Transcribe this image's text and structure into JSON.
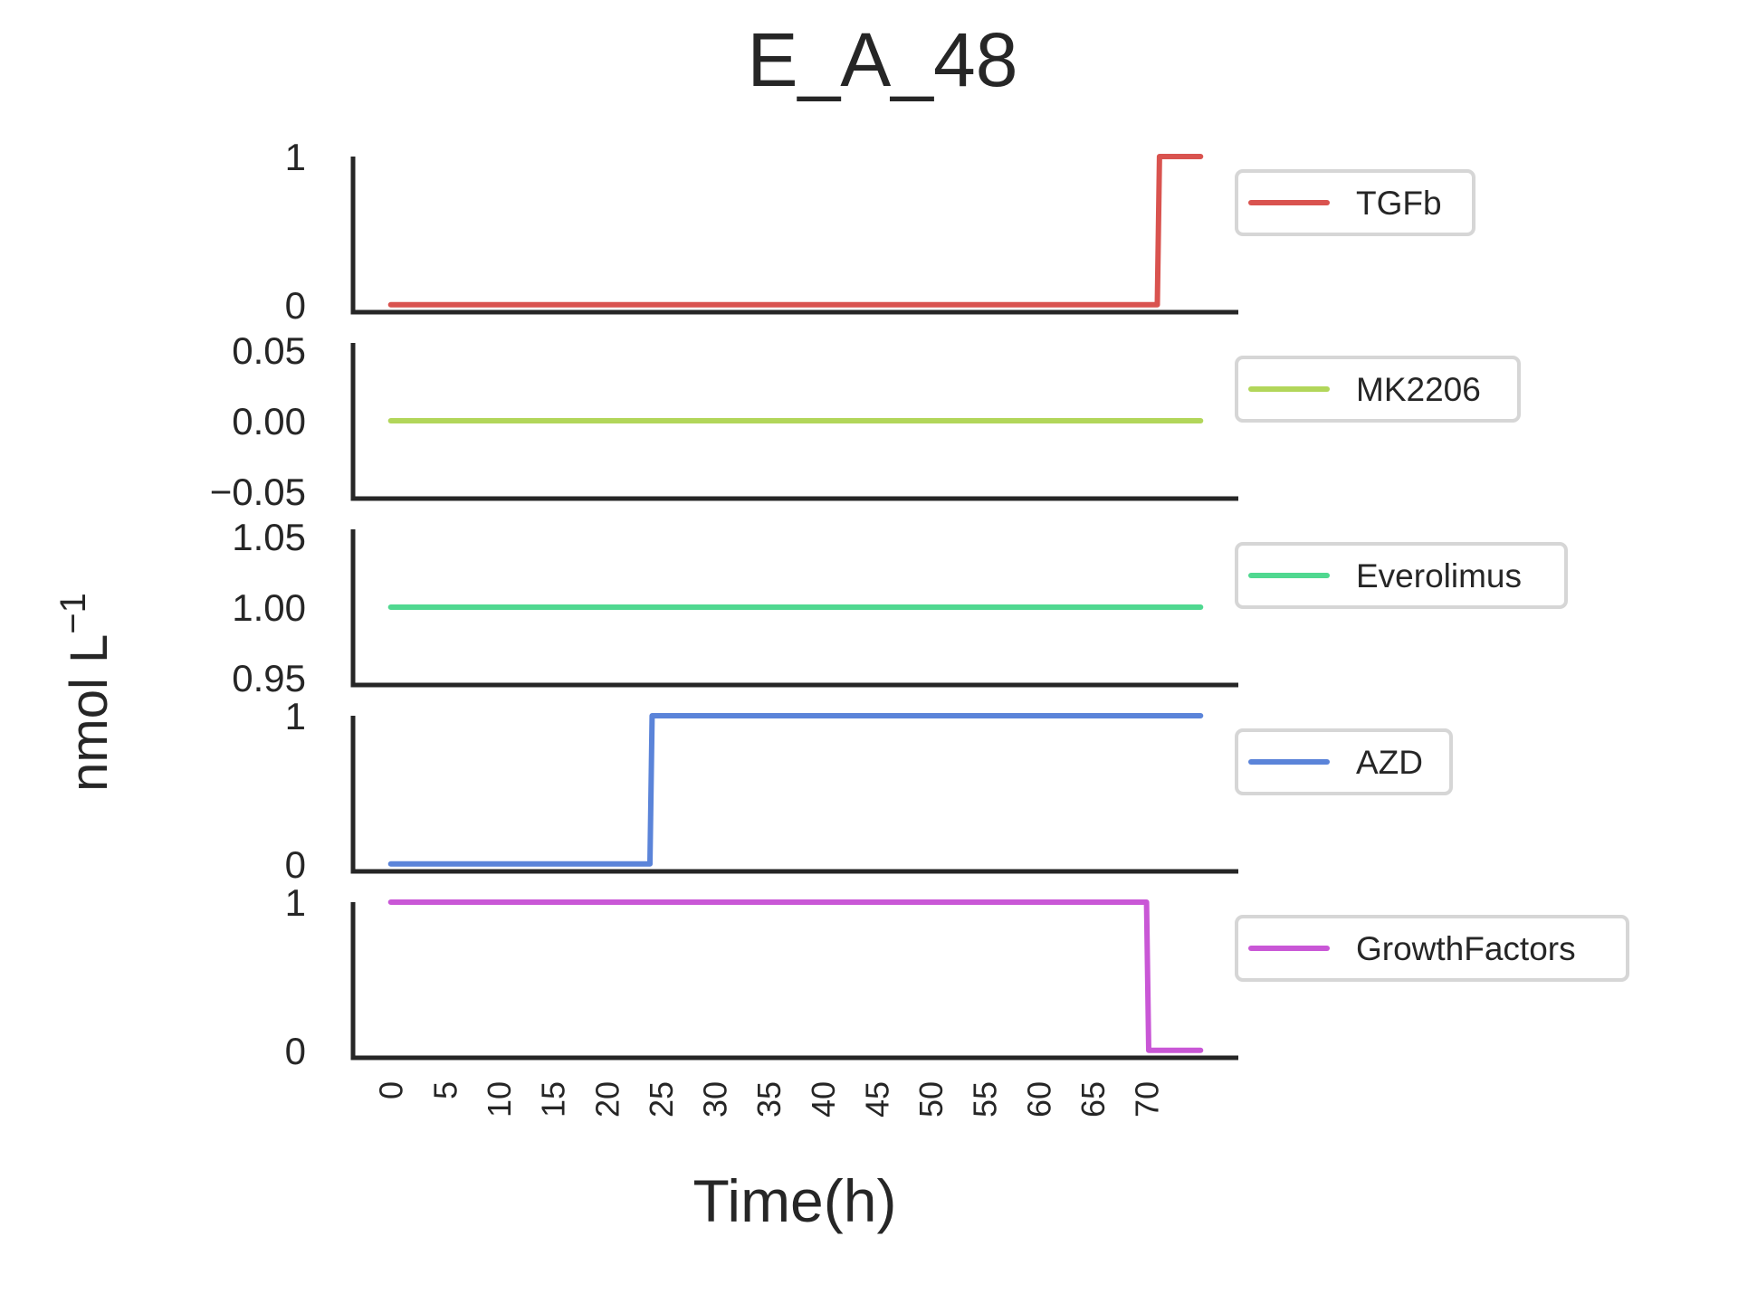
{
  "chart_data": {
    "type": "line",
    "title": "E_A_48",
    "xlabel": "Time(h)",
    "ylabel": "nmol L",
    "ylabel_sup": "−1",
    "x_ticks": [
      "0",
      "5",
      "10",
      "15",
      "20",
      "25",
      "30",
      "35",
      "40",
      "45",
      "50",
      "55",
      "60",
      "65",
      "70"
    ],
    "x_tick_values": [
      0,
      5,
      10,
      15,
      20,
      25,
      30,
      35,
      40,
      45,
      50,
      55,
      60,
      65,
      70
    ],
    "xlim": [
      -3.5,
      78.5
    ],
    "grid": false,
    "legend_placement": "right of each panel",
    "panels": [
      {
        "name": "TGFb",
        "color": "#d9534f",
        "ylim": [
          -0.05,
          1.0
        ],
        "y_ticks": [
          "0",
          "1"
        ],
        "y_tick_values": [
          0,
          1
        ],
        "x": [
          0,
          71,
          71.2,
          75
        ],
        "y": [
          0,
          0,
          1,
          1
        ]
      },
      {
        "name": "MK2206",
        "color": "#b2d65a",
        "ylim": [
          -0.055,
          0.055
        ],
        "y_ticks": [
          "0.05",
          "0.00",
          "−0.05"
        ],
        "y_tick_values": [
          0.05,
          0.0,
          -0.05
        ],
        "x": [
          0,
          75
        ],
        "y": [
          0,
          0
        ]
      },
      {
        "name": "Everolimus",
        "color": "#50d890",
        "ylim": [
          0.945,
          1.055
        ],
        "y_ticks": [
          "1.05",
          "1.00",
          "0.95"
        ],
        "y_tick_values": [
          1.05,
          1.0,
          0.95
        ],
        "x": [
          0,
          75
        ],
        "y": [
          1,
          1
        ]
      },
      {
        "name": "AZD",
        "color": "#5b84d9",
        "ylim": [
          -0.05,
          1.0
        ],
        "y_ticks": [
          "1",
          "0"
        ],
        "y_tick_values": [
          1,
          0
        ],
        "x": [
          0,
          24,
          24.2,
          75
        ],
        "y": [
          0,
          0,
          1,
          1
        ]
      },
      {
        "name": "GrowthFactors",
        "color": "#c957d6",
        "ylim": [
          -0.05,
          1.0
        ],
        "y_ticks": [
          "1",
          "0"
        ],
        "y_tick_values": [
          1,
          0
        ],
        "x": [
          0,
          70,
          70.2,
          75
        ],
        "y": [
          1,
          1,
          0,
          0
        ]
      }
    ]
  }
}
